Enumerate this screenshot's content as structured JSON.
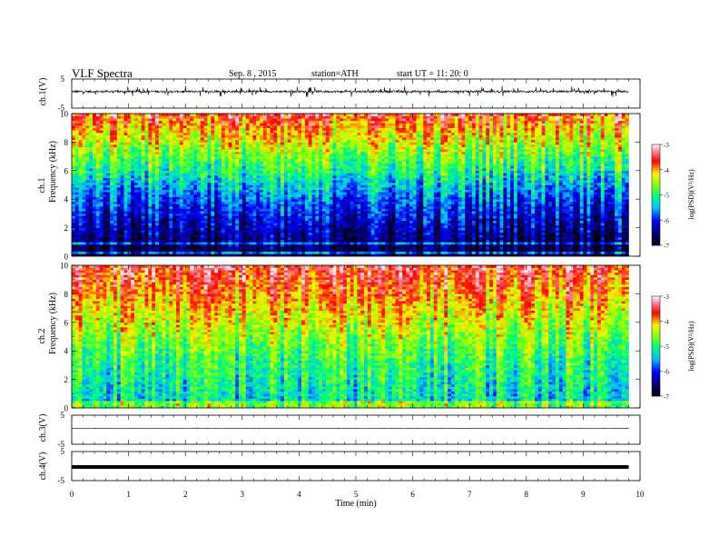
{
  "header": {
    "title": "VLF  Spectra",
    "date": "Sep. 8  , 2015",
    "station": "station=ATH",
    "start": "start  UT  =   11: 20: 0"
  },
  "chart_data": [
    {
      "type": "line",
      "name": "ch1-waveform",
      "ylabel": "ch.1(V)",
      "ylim": [
        -5,
        5
      ],
      "y_ticks": [
        "5",
        "-5"
      ],
      "baseline": 0.7,
      "noise_amplitude": 0.35,
      "spike_amplitude": 1.8,
      "color": "#000000"
    },
    {
      "type": "heatmap",
      "name": "ch1-spectrogram",
      "ylabel": "ch.1\nFrequency  (kHz)",
      "ylim": [
        0,
        10
      ],
      "y_ticks": [
        "0",
        "2",
        "4",
        "6",
        "8",
        "10"
      ],
      "colorbar": {
        "label": "log(PSD)(V²/Hz)",
        "range": [
          -7,
          -3
        ],
        "ticks": [
          "-3",
          "-4",
          "-5",
          "-6",
          "-7"
        ]
      },
      "profile": "ch1"
    },
    {
      "type": "heatmap",
      "name": "ch2-spectrogram",
      "ylabel": "ch.2\nFrequency  (kHz)",
      "ylim": [
        0,
        10
      ],
      "y_ticks": [
        "0",
        "2",
        "4",
        "6",
        "8",
        "10"
      ],
      "colorbar": {
        "label": "log(PSD)(V²/Hz)",
        "range": [
          -7,
          -3
        ],
        "ticks": [
          "-3",
          "-4",
          "-5",
          "-6",
          "-7"
        ]
      },
      "profile": "ch2"
    },
    {
      "type": "line",
      "name": "ch3-waveform",
      "ylabel": "ch.3(V)",
      "ylim": [
        -5,
        5
      ],
      "y_ticks": [
        "5",
        "-5"
      ],
      "baseline": 0.5,
      "noise_amplitude": 0.05,
      "spike_amplitude": 0.1,
      "color": "#000000"
    },
    {
      "type": "line",
      "name": "ch4-waveform",
      "ylabel": "ch.4(V)",
      "ylim": [
        -5,
        5
      ],
      "y_ticks": [
        "5",
        "-5"
      ],
      "baseline": -0.3,
      "noise_amplitude": 0.0,
      "spike_amplitude": 0.0,
      "color": "#000000",
      "thick": true
    }
  ],
  "x_axis": {
    "label": "Time  (min)",
    "xlim": [
      0,
      10
    ],
    "data_end": 9.8,
    "ticks": [
      "0",
      "1",
      "2",
      "3",
      "4",
      "5",
      "6",
      "7",
      "8",
      "9",
      "10"
    ]
  }
}
